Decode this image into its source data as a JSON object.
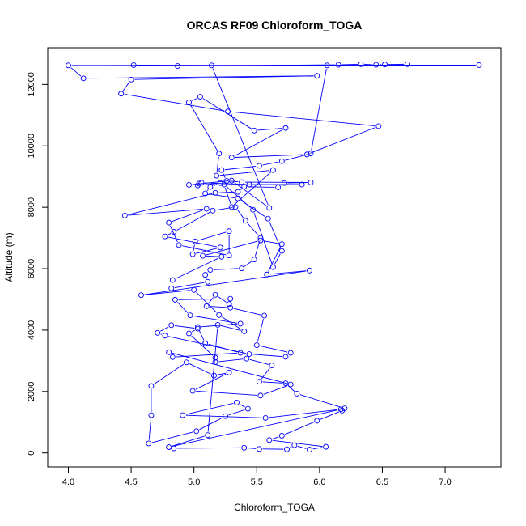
{
  "chart_data": {
    "type": "line",
    "title": "ORCAS RF09 Chloroform_TOGA",
    "xlabel": "Chloroform_TOGA",
    "ylabel": "Altitude (m)",
    "xlim": [
      3.98,
      7.3
    ],
    "ylim": [
      90,
      12650
    ],
    "xticks": [
      4.0,
      4.5,
      5.0,
      5.5,
      6.0,
      6.5,
      7.0
    ],
    "xtick_labels": [
      "4.0",
      "4.5",
      "5.0",
      "5.5",
      "6.0",
      "6.5",
      "7.0"
    ],
    "yticks": [
      0,
      2000,
      4000,
      6000,
      8000,
      10000,
      12000
    ],
    "ytick_labels": [
      "0",
      "2000",
      "4000",
      "6000",
      "8000",
      "10000",
      "12000"
    ],
    "color": "#0000ff",
    "series": [
      {
        "name": "Chloroform_TOGA",
        "points": [
          [
            4.84,
            150
          ],
          [
            5.4,
            170
          ],
          [
            5.52,
            130
          ],
          [
            5.74,
            120
          ],
          [
            5.8,
            250
          ],
          [
            5.92,
            110
          ],
          [
            6.05,
            200
          ],
          [
            5.6,
            420
          ],
          [
            5.7,
            560
          ],
          [
            5.98,
            1050
          ],
          [
            6.18,
            1380
          ],
          [
            6.2,
            1450
          ],
          [
            5.82,
            1930
          ],
          [
            5.73,
            2270
          ],
          [
            5.52,
            2320
          ],
          [
            5.62,
            2850
          ],
          [
            5.42,
            3070
          ],
          [
            5.17,
            2960
          ],
          [
            5.17,
            3100
          ],
          [
            4.96,
            3890
          ],
          [
            5.03,
            4050
          ],
          [
            4.82,
            4160
          ],
          [
            4.71,
            3910
          ],
          [
            4.77,
            3820
          ],
          [
            5.44,
            3220
          ],
          [
            5.73,
            3130
          ],
          [
            5.77,
            3260
          ],
          [
            5.5,
            3510
          ],
          [
            5.56,
            4470
          ],
          [
            5.29,
            4730
          ],
          [
            5.1,
            4780
          ],
          [
            5.17,
            5150
          ],
          [
            5.28,
            4850
          ],
          [
            5.29,
            5020
          ],
          [
            4.85,
            4990
          ],
          [
            4.97,
            4480
          ],
          [
            5.37,
            4210
          ],
          [
            5.03,
            4100
          ],
          [
            5.09,
            3570
          ],
          [
            5.37,
            3260
          ],
          [
            4.83,
            3120
          ],
          [
            4.8,
            3280
          ],
          [
            5.77,
            2230
          ],
          [
            5.53,
            1870
          ],
          [
            4.99,
            2020
          ],
          [
            5.28,
            2620
          ],
          [
            5.16,
            2520
          ],
          [
            4.94,
            2950
          ],
          [
            4.66,
            2180
          ],
          [
            4.66,
            1230
          ],
          [
            4.64,
            310
          ],
          [
            5.02,
            710
          ],
          [
            5.25,
            1200
          ],
          [
            5.43,
            1440
          ],
          [
            5.34,
            1640
          ],
          [
            4.91,
            1230
          ],
          [
            5.57,
            1140
          ],
          [
            6.17,
            1420
          ],
          [
            4.8,
            190
          ],
          [
            5.11,
            580
          ],
          [
            5.19,
            4170
          ],
          [
            5.4,
            3960
          ],
          [
            5.2,
            4490
          ],
          [
            5.0,
            5310
          ],
          [
            4.58,
            5140
          ],
          [
            5.92,
            5940
          ],
          [
            5.58,
            5810
          ],
          [
            5.7,
            6800
          ],
          [
            5.53,
            6920
          ],
          [
            5.07,
            6420
          ],
          [
            5.22,
            6390
          ],
          [
            4.83,
            5630
          ],
          [
            4.82,
            5360
          ],
          [
            5.11,
            5570
          ],
          [
            5.09,
            5800
          ],
          [
            5.13,
            5960
          ],
          [
            5.38,
            6010
          ],
          [
            5.48,
            6300
          ],
          [
            5.53,
            7000
          ],
          [
            5.41,
            7560
          ],
          [
            5.33,
            8010
          ],
          [
            5.15,
            7890
          ],
          [
            4.84,
            7200
          ],
          [
            4.77,
            7050
          ],
          [
            5.21,
            6690
          ],
          [
            4.99,
            6470
          ],
          [
            5.01,
            6890
          ],
          [
            5.28,
            7220
          ],
          [
            5.28,
            6430
          ],
          [
            4.88,
            6770
          ],
          [
            4.8,
            7500
          ],
          [
            5.1,
            7950
          ],
          [
            4.45,
            7730
          ],
          [
            5.17,
            8470
          ],
          [
            5.35,
            8500
          ],
          [
            5.4,
            8670
          ],
          [
            5.67,
            8650
          ],
          [
            5.72,
            8790
          ],
          [
            5.93,
            8810
          ],
          [
            5.38,
            8820
          ],
          [
            5.26,
            8860
          ],
          [
            5.22,
            9210
          ],
          [
            5.52,
            9350
          ],
          [
            5.7,
            9500
          ],
          [
            5.93,
            9750
          ],
          [
            6.06,
            12620
          ],
          [
            7.27,
            12630
          ],
          [
            4.0,
            12620
          ],
          [
            4.12,
            12200
          ],
          [
            5.98,
            12280
          ],
          [
            4.5,
            12160
          ],
          [
            4.42,
            11700
          ],
          [
            5.27,
            11120
          ],
          [
            6.47,
            10640
          ],
          [
            5.9,
            9720
          ],
          [
            5.3,
            9620
          ],
          [
            5.73,
            10580
          ],
          [
            5.48,
            10500
          ],
          [
            5.05,
            11600
          ],
          [
            4.96,
            11420
          ],
          [
            5.2,
            9750
          ],
          [
            5.18,
            9030
          ],
          [
            5.63,
            9210
          ],
          [
            5.3,
            8010
          ],
          [
            5.24,
            8740
          ],
          [
            5.47,
            7920
          ],
          [
            5.63,
            6050
          ],
          [
            5.7,
            6580
          ],
          [
            5.59,
            7630
          ],
          [
            5.35,
            8290
          ],
          [
            5.09,
            8450
          ],
          [
            5.13,
            8660
          ],
          [
            5.21,
            8790
          ],
          [
            5.03,
            8710
          ],
          [
            5.04,
            8770
          ],
          [
            5.06,
            8800
          ],
          [
            5.44,
            8740
          ],
          [
            5.86,
            8740
          ],
          [
            4.96,
            8730
          ],
          [
            5.3,
            8870
          ],
          [
            5.6,
            7980
          ],
          [
            5.14,
            12620
          ],
          [
            4.52,
            12630
          ],
          [
            4.87,
            12600
          ],
          [
            6.15,
            12640
          ],
          [
            6.33,
            12660
          ],
          [
            6.45,
            12640
          ],
          [
            6.52,
            12650
          ],
          [
            6.7,
            12660
          ]
        ]
      }
    ]
  }
}
